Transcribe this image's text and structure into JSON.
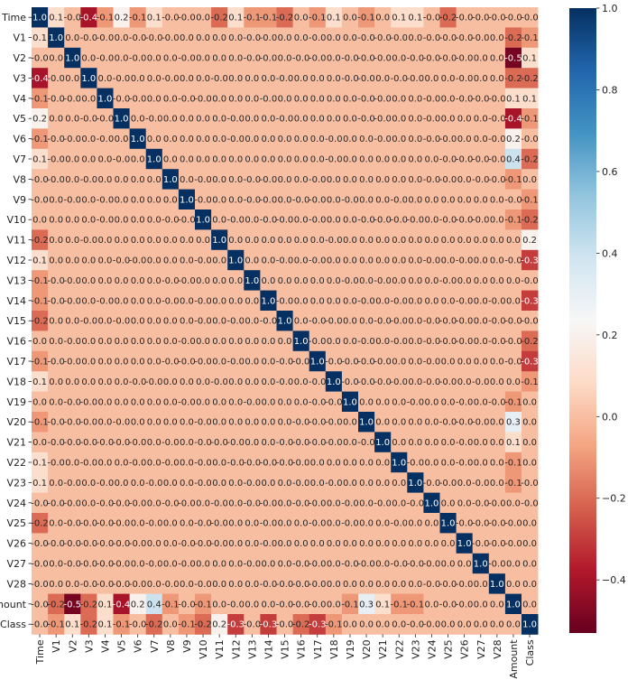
{
  "chart_data": {
    "type": "heatmap",
    "title": "",
    "xlabel": "",
    "ylabel": "",
    "labels": [
      "Time",
      "V1",
      "V2",
      "V3",
      "V4",
      "V5",
      "V6",
      "V7",
      "V8",
      "V9",
      "V10",
      "V11",
      "V12",
      "V13",
      "V14",
      "V15",
      "V16",
      "V17",
      "V18",
      "V19",
      "V20",
      "V21",
      "V22",
      "V23",
      "V24",
      "V25",
      "V26",
      "V27",
      "V28",
      "Amount",
      "Class"
    ],
    "matrix": [
      [
        1.0,
        0.1,
        -0.0,
        -0.4,
        -0.1,
        0.2,
        -0.1,
        0.1,
        -0.0,
        -0.0,
        0.0,
        -0.2,
        0.1,
        -0.1,
        -0.1,
        -0.2,
        0.0,
        -0.1,
        0.1,
        0.0,
        -0.1,
        0.0,
        0.1,
        0.1,
        -0.0,
        -0.2,
        -0.0,
        -0.0,
        -0.0,
        -0.0,
        -0.0
      ],
      [
        0.1,
        1.0,
        0.0,
        -0.0,
        -0.0,
        0.0,
        -0.0,
        -0.0,
        -0.0,
        0.0,
        0.0,
        0.0,
        0.0,
        -0.0,
        -0.0,
        0.0,
        0.0,
        -0.0,
        0.0,
        0.0,
        -0.0,
        -0.0,
        -0.0,
        0.0,
        -0.0,
        -0.0,
        -0.0,
        -0.0,
        0.0,
        -0.2,
        -0.1
      ],
      [
        -0.0,
        0.0,
        1.0,
        0.0,
        -0.0,
        0.0,
        -0.0,
        0.0,
        0.0,
        -0.0,
        0.0,
        0.0,
        0.0,
        -0.0,
        -0.0,
        0.0,
        -0.0,
        -0.0,
        0.0,
        -0.0,
        -0.0,
        -0.0,
        0.0,
        -0.0,
        -0.0,
        -0.0,
        -0.0,
        0.0,
        0.0,
        -0.5,
        0.1
      ],
      [
        -0.4,
        -0.0,
        0.0,
        1.0,
        0.0,
        -0.0,
        0.0,
        0.0,
        -0.0,
        0.0,
        0.0,
        -0.0,
        0.0,
        0.0,
        0.0,
        -0.0,
        0.0,
        0.0,
        0.0,
        -0.0,
        -0.0,
        0.0,
        -0.0,
        -0.0,
        0.0,
        0.0,
        -0.0,
        0.0,
        0.0,
        -0.2,
        -0.2
      ],
      [
        -0.1,
        -0.0,
        -0.0,
        0.0,
        1.0,
        -0.0,
        -0.0,
        0.0,
        0.0,
        -0.0,
        -0.0,
        0.0,
        0.0,
        0.0,
        -0.0,
        0.0,
        0.0,
        0.0,
        0.0,
        0.0,
        -0.0,
        -0.0,
        0.0,
        0.0,
        -0.0,
        0.0,
        -0.0,
        -0.0,
        -0.0,
        0.1,
        0.1
      ],
      [
        0.2,
        0.0,
        0.0,
        -0.0,
        -0.0,
        1.0,
        0.0,
        -0.0,
        0.0,
        0.0,
        0.0,
        0.0,
        -0.0,
        0.0,
        0.0,
        -0.0,
        0.0,
        0.0,
        0.0,
        0.0,
        -0.0,
        -0.0,
        0.0,
        0.0,
        -0.0,
        0.0,
        0.0,
        0.0,
        -0.0,
        -0.4,
        -0.1
      ],
      [
        -0.1,
        -0.0,
        -0.0,
        0.0,
        -0.0,
        0.0,
        1.0,
        0.0,
        0.0,
        0.0,
        0.0,
        0.0,
        -0.0,
        0.0,
        0.0,
        0.0,
        0.0,
        0.0,
        -0.0,
        0.0,
        0.0,
        -0.0,
        0.0,
        0.0,
        -0.0,
        -0.0,
        0.0,
        0.0,
        -0.0,
        0.2,
        -0.0
      ],
      [
        0.1,
        -0.0,
        0.0,
        0.0,
        0.0,
        -0.0,
        0.0,
        1.0,
        0.0,
        0.0,
        0.0,
        0.0,
        0.0,
        0.0,
        0.0,
        0.0,
        0.0,
        0.0,
        -0.0,
        0.0,
        0.0,
        0.0,
        0.0,
        0.0,
        0.0,
        -0.0,
        -0.0,
        -0.0,
        -0.0,
        0.4,
        -0.2
      ],
      [
        -0.0,
        -0.0,
        0.0,
        -0.0,
        0.0,
        0.0,
        0.0,
        0.0,
        1.0,
        0.0,
        -0.0,
        0.0,
        0.0,
        -0.0,
        -0.0,
        0.0,
        0.0,
        -0.0,
        0.0,
        0.0,
        0.0,
        0.0,
        0.0,
        0.0,
        -0.0,
        -0.0,
        0.0,
        -0.0,
        -0.0,
        -0.1,
        0.0
      ],
      [
        -0.0,
        0.0,
        -0.0,
        0.0,
        -0.0,
        0.0,
        0.0,
        0.0,
        0.0,
        1.0,
        -0.0,
        0.0,
        0.0,
        -0.0,
        -0.0,
        0.0,
        -0.0,
        -0.0,
        0.0,
        -0.0,
        0.0,
        0.0,
        -0.0,
        0.0,
        0.0,
        0.0,
        0.0,
        0.0,
        0.0,
        -0.0,
        -0.1
      ],
      [
        0.0,
        0.0,
        0.0,
        0.0,
        -0.0,
        0.0,
        0.0,
        0.0,
        -0.0,
        -0.0,
        1.0,
        0.0,
        -0.0,
        0.0,
        -0.0,
        -0.0,
        0.0,
        -0.0,
        0.0,
        0.0,
        -0.0,
        -0.0,
        -0.0,
        -0.0,
        0.0,
        -0.0,
        -0.0,
        -0.0,
        0.0,
        -0.1,
        -0.2
      ],
      [
        -0.2,
        0.0,
        0.0,
        -0.0,
        0.0,
        0.0,
        0.0,
        0.0,
        0.0,
        0.0,
        0.0,
        1.0,
        0.0,
        0.0,
        0.0,
        0.0,
        0.0,
        0.0,
        -0.0,
        0.0,
        0.0,
        0.0,
        0.0,
        0.0,
        0.0,
        0.0,
        0.0,
        0.0,
        0.0,
        0.0,
        0.2
      ],
      [
        0.1,
        0.0,
        0.0,
        0.0,
        0.0,
        -0.0,
        -0.0,
        0.0,
        0.0,
        0.0,
        -0.0,
        0.0,
        1.0,
        0.0,
        0.0,
        -0.0,
        0.0,
        -0.0,
        0.0,
        0.0,
        0.0,
        0.0,
        0.0,
        0.0,
        -0.0,
        0.0,
        -0.0,
        0.0,
        0.0,
        -0.0,
        -0.3
      ],
      [
        -0.1,
        -0.0,
        -0.0,
        0.0,
        0.0,
        0.0,
        0.0,
        0.0,
        -0.0,
        -0.0,
        0.0,
        0.0,
        0.0,
        1.0,
        0.0,
        0.0,
        0.0,
        0.0,
        0.0,
        -0.0,
        0.0,
        -0.0,
        0.0,
        0.0,
        0.0,
        -0.0,
        0.0,
        0.0,
        0.0,
        0.0,
        -0.0
      ],
      [
        -0.1,
        -0.0,
        -0.0,
        0.0,
        -0.0,
        0.0,
        0.0,
        0.0,
        -0.0,
        0.0,
        -0.0,
        0.0,
        0.0,
        0.0,
        1.0,
        -0.0,
        0.0,
        0.0,
        0.0,
        0.0,
        -0.0,
        0.0,
        -0.0,
        0.0,
        0.0,
        0.0,
        -0.0,
        0.0,
        -0.0,
        0.0,
        -0.3
      ],
      [
        -0.2,
        0.0,
        0.0,
        -0.0,
        0.0,
        -0.0,
        0.0,
        0.0,
        0.0,
        0.0,
        -0.0,
        0.0,
        -0.0,
        0.0,
        -0.0,
        1.0,
        0.0,
        -0.0,
        -0.0,
        0.0,
        0.0,
        -0.0,
        -0.0,
        0.0,
        -0.0,
        -0.0,
        -0.0,
        0.0,
        -0.0,
        -0.0,
        -0.0
      ],
      [
        0.0,
        0.0,
        -0.0,
        0.0,
        0.0,
        0.0,
        0.0,
        0.0,
        0.0,
        -0.0,
        0.0,
        0.0,
        0.0,
        0.0,
        0.0,
        0.0,
        1.0,
        -0.0,
        0.0,
        0.0,
        -0.0,
        0.0,
        -0.0,
        0.0,
        -0.0,
        -0.0,
        -0.0,
        0.0,
        -0.0,
        -0.0,
        -0.2
      ],
      [
        -0.1,
        -0.0,
        -0.0,
        0.0,
        0.0,
        0.0,
        0.0,
        0.0,
        -0.0,
        -0.0,
        -0.0,
        0.0,
        -0.0,
        0.0,
        0.0,
        -0.0,
        -0.0,
        1.0,
        -0.0,
        -0.0,
        -0.0,
        -0.0,
        0.0,
        0.0,
        -0.0,
        0.0,
        0.0,
        0.0,
        0.0,
        -0.0,
        -0.3
      ],
      [
        0.1,
        0.0,
        0.0,
        0.0,
        0.0,
        0.0,
        -0.0,
        -0.0,
        0.0,
        0.0,
        0.0,
        -0.0,
        0.0,
        0.0,
        0.0,
        -0.0,
        0.0,
        -0.0,
        1.0,
        -0.0,
        -0.0,
        -0.0,
        -0.0,
        0.0,
        -0.0,
        -0.0,
        0.0,
        -0.0,
        0.0,
        0.0,
        -0.1
      ],
      [
        0.0,
        0.0,
        -0.0,
        -0.0,
        0.0,
        0.0,
        0.0,
        0.0,
        0.0,
        -0.0,
        0.0,
        0.0,
        0.0,
        -0.0,
        0.0,
        0.0,
        0.0,
        -0.0,
        -0.0,
        1.0,
        0.0,
        0.0,
        0.0,
        -0.0,
        0.0,
        0.0,
        -0.0,
        0.0,
        -0.0,
        -0.1,
        0.0
      ],
      [
        -0.1,
        -0.0,
        -0.0,
        -0.0,
        0.0,
        -0.0,
        0.0,
        0.0,
        0.0,
        0.0,
        -0.0,
        0.0,
        0.0,
        0.0,
        0.0,
        0.0,
        -0.0,
        -0.0,
        -0.0,
        0.0,
        1.0,
        0.0,
        0.0,
        0.0,
        0.0,
        -0.0,
        -0.0,
        -0.0,
        0.0,
        0.3,
        0.0
      ],
      [
        0.0,
        -0.0,
        -0.0,
        -0.0,
        -0.0,
        -0.0,
        -0.0,
        0.0,
        -0.0,
        0.0,
        -0.0,
        -0.0,
        -0.0,
        0.0,
        0.0,
        -0.0,
        -0.0,
        -0.0,
        -0.0,
        0.0,
        -0.0,
        1.0,
        0.0,
        0.0,
        0.0,
        0.0,
        -0.0,
        0.0,
        0.0,
        0.1,
        0.0
      ],
      [
        0.1,
        -0.0,
        0.0,
        -0.0,
        0.0,
        0.0,
        -0.0,
        0.0,
        -0.0,
        0.0,
        -0.0,
        0.0,
        -0.0,
        -0.0,
        -0.0,
        -0.0,
        -0.0,
        0.0,
        0.0,
        0.0,
        0.0,
        0.0,
        1.0,
        -0.0,
        0.0,
        0.0,
        -0.0,
        0.0,
        0.0,
        -0.1,
        0.0
      ],
      [
        0.1,
        0.0,
        -0.0,
        0.0,
        -0.0,
        0.0,
        0.0,
        -0.0,
        0.0,
        0.0,
        -0.0,
        0.0,
        0.0,
        -0.0,
        0.0,
        0.0,
        -0.0,
        0.0,
        -0.0,
        0.0,
        0.0,
        0.0,
        0.0,
        1.0,
        -0.0,
        -0.0,
        0.0,
        -0.0,
        0.0,
        -0.1,
        -0.0
      ],
      [
        -0.0,
        -0.0,
        -0.0,
        0.0,
        -0.0,
        -0.0,
        -0.0,
        0.0,
        -0.0,
        -0.0,
        0.0,
        -0.0,
        0.0,
        -0.0,
        -0.0,
        0.0,
        -0.0,
        -0.0,
        0.0,
        -0.0,
        0.0,
        -0.0,
        0.0,
        -0.0,
        1.0,
        0.0,
        0.0,
        -0.0,
        -0.0,
        0.0,
        -0.0
      ],
      [
        -0.2,
        0.0,
        -0.0,
        -0.0,
        -0.0,
        -0.0,
        0.0,
        -0.0,
        0.0,
        0.0,
        -0.0,
        -0.0,
        0.0,
        0.0,
        -0.0,
        0.0,
        0.0,
        -0.0,
        0.0,
        -0.0,
        0.0,
        0.0,
        -0.0,
        0.0,
        0.0,
        1.0,
        -0.0,
        -0.0,
        -0.0,
        -0.0,
        0.0
      ],
      [
        -0.0,
        -0.0,
        -0.0,
        -0.0,
        -0.0,
        -0.0,
        -0.0,
        0.0,
        0.0,
        -0.0,
        -0.0,
        -0.0,
        0.0,
        0.0,
        -0.0,
        0.0,
        0.0,
        0.0,
        0.0,
        0.0,
        0.0,
        0.0,
        0.0,
        0.0,
        0.0,
        0.0,
        1.0,
        -0.0,
        -0.0,
        -0.0,
        0.0
      ],
      [
        -0.0,
        0.0,
        -0.0,
        -0.0,
        -0.0,
        -0.0,
        0.0,
        -0.0,
        0.0,
        -0.0,
        0.0,
        0.0,
        0.0,
        -0.0,
        0.0,
        0.0,
        -0.0,
        -0.0,
        0.0,
        -0.0,
        -0.0,
        0.0,
        -0.0,
        -0.0,
        -0.0,
        0.0,
        0.0,
        1.0,
        -0.0,
        0.0,
        0.0
      ],
      [
        -0.0,
        0.0,
        0.0,
        -0.0,
        -0.0,
        -0.0,
        -0.0,
        0.0,
        -0.0,
        0.0,
        -0.0,
        0.0,
        0.0,
        0.0,
        -0.0,
        -0.0,
        -0.0,
        -0.0,
        0.0,
        0.0,
        0.0,
        0.0,
        0.0,
        0.0,
        -0.0,
        -0.0,
        -0.0,
        0.0,
        1.0,
        0.0,
        0.0
      ],
      [
        -0.0,
        -0.2,
        -0.5,
        -0.2,
        0.1,
        -0.4,
        0.2,
        0.4,
        -0.1,
        -0.0,
        -0.1,
        0.0,
        -0.0,
        0.0,
        0.0,
        -0.0,
        -0.0,
        -0.0,
        0.0,
        -0.1,
        0.3,
        0.1,
        -0.1,
        -0.1,
        0.0,
        -0.0,
        -0.0,
        0.0,
        0.0,
        1.0,
        0.0
      ],
      [
        -0.0,
        -0.1,
        0.1,
        -0.2,
        0.1,
        -0.1,
        -0.0,
        -0.2,
        0.0,
        -0.1,
        -0.2,
        0.2,
        -0.3,
        -0.0,
        -0.3,
        -0.0,
        -0.2,
        -0.3,
        -0.1,
        0.0,
        0.0,
        0.0,
        0.0,
        -0.0,
        -0.0,
        0.0,
        0.0,
        0.0,
        0.0,
        0.0,
        1.0
      ]
    ],
    "colorbar": {
      "ticks": [
        1.0,
        0.8,
        0.6,
        0.4,
        0.2,
        0.0,
        -0.2,
        -0.4
      ],
      "vmin": -0.53,
      "vmax": 1.0,
      "colormap": "RdBu"
    },
    "grid": false
  }
}
